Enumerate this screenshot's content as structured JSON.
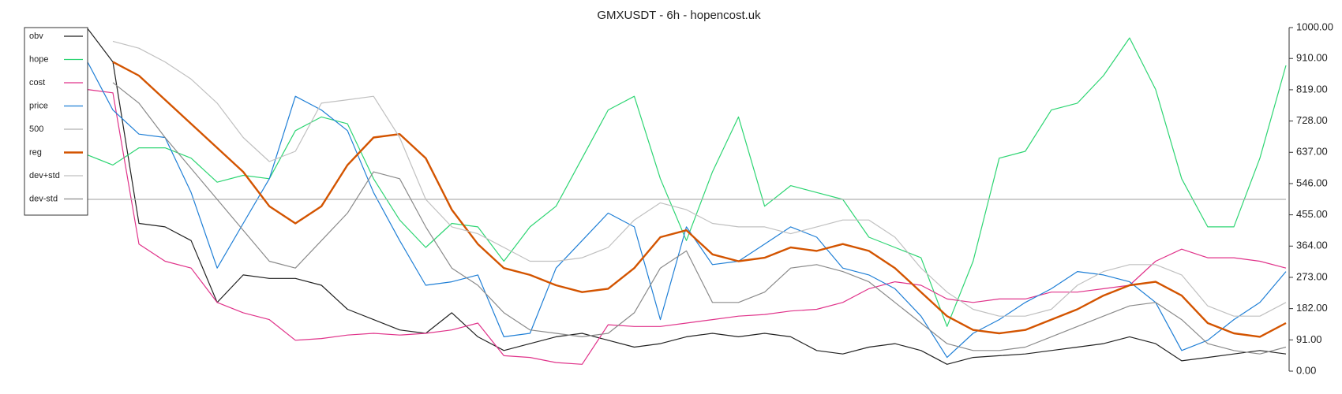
{
  "chart_data": {
    "type": "line",
    "title": "GMXUSDT - 6h - hopencost.uk",
    "ylim": [
      0,
      1000
    ],
    "yticks": [
      {
        "value": 0,
        "label": "0.00"
      },
      {
        "value": 91,
        "label": "91.00"
      },
      {
        "value": 182,
        "label": "182.00"
      },
      {
        "value": 273,
        "label": "273.00"
      },
      {
        "value": 364,
        "label": "364.00"
      },
      {
        "value": 455,
        "label": "455.00"
      },
      {
        "value": 546,
        "label": "546.00"
      },
      {
        "value": 637,
        "label": "637.00"
      },
      {
        "value": 728,
        "label": "728.00"
      },
      {
        "value": 819,
        "label": "819.00"
      },
      {
        "value": 910,
        "label": "910.00"
      },
      {
        "value": 1000,
        "label": "1000.00"
      }
    ],
    "legend": "upper left",
    "series": [
      {
        "name": "obv",
        "color": "#222222",
        "values": [
          1000,
          900,
          430,
          420,
          380,
          200,
          280,
          270,
          270,
          250,
          180,
          150,
          120,
          110,
          170,
          100,
          60,
          80,
          100,
          110,
          90,
          70,
          80,
          100,
          110,
          100,
          110,
          100,
          60,
          50,
          70,
          80,
          60,
          20,
          40,
          45,
          50,
          60,
          70,
          80,
          100,
          80,
          30,
          40,
          50,
          60,
          50
        ]
      },
      {
        "name": "hope",
        "color": "#2ed573",
        "values": [
          630,
          600,
          650,
          650,
          620,
          550,
          570,
          560,
          700,
          740,
          720,
          560,
          440,
          360,
          430,
          420,
          320,
          420,
          480,
          620,
          760,
          800,
          560,
          380,
          580,
          740,
          480,
          540,
          520,
          500,
          390,
          360,
          330,
          130,
          320,
          620,
          640,
          760,
          780,
          860,
          970,
          820,
          560,
          420,
          420,
          620,
          890
        ]
      },
      {
        "name": "cost",
        "color": "#e0338a",
        "values": [
          820,
          810,
          370,
          320,
          300,
          200,
          170,
          150,
          90,
          95,
          105,
          110,
          105,
          110,
          120,
          140,
          45,
          40,
          25,
          20,
          135,
          130,
          130,
          140,
          150,
          160,
          165,
          175,
          180,
          200,
          240,
          260,
          250,
          210,
          200,
          210,
          210,
          230,
          230,
          240,
          250,
          320,
          355,
          330,
          330,
          320,
          300
        ]
      },
      {
        "name": "price",
        "color": "#1f7fd6",
        "values": [
          904,
          760,
          690,
          680,
          520,
          300,
          430,
          560,
          800,
          760,
          700,
          520,
          380,
          250,
          260,
          280,
          100,
          110,
          300,
          380,
          460,
          420,
          150,
          420,
          310,
          320,
          370,
          420,
          390,
          300,
          280,
          240,
          160,
          40,
          110,
          150,
          200,
          240,
          290,
          280,
          260,
          200,
          60,
          90,
          150,
          200,
          290
        ]
      },
      {
        "name": "500",
        "color": "#b0b0b0",
        "values": [
          500,
          500,
          500,
          500,
          500,
          500,
          500,
          500,
          500,
          500,
          500,
          500,
          500,
          500,
          500,
          500,
          500,
          500,
          500,
          500,
          500,
          500,
          500,
          500,
          500,
          500,
          500,
          500,
          500,
          500,
          500,
          500,
          500,
          500,
          500,
          500,
          500,
          500,
          500,
          500,
          500,
          500,
          500,
          500,
          500,
          500,
          500
        ]
      },
      {
        "name": "reg",
        "color": "#d35400",
        "values": [
          null,
          900,
          860,
          790,
          720,
          650,
          580,
          480,
          430,
          480,
          600,
          680,
          690,
          620,
          470,
          370,
          300,
          280,
          250,
          230,
          240,
          300,
          390,
          410,
          340,
          320,
          330,
          360,
          350,
          370,
          350,
          300,
          230,
          160,
          120,
          110,
          120,
          150,
          180,
          220,
          250,
          260,
          220,
          140,
          110,
          100,
          140
        ]
      },
      {
        "name": "dev+std",
        "color": "#c0c0c0",
        "values": [
          null,
          960,
          940,
          900,
          850,
          780,
          680,
          610,
          640,
          780,
          790,
          800,
          680,
          500,
          420,
          400,
          360,
          320,
          320,
          330,
          360,
          440,
          490,
          470,
          430,
          420,
          420,
          400,
          420,
          440,
          440,
          390,
          300,
          230,
          180,
          160,
          160,
          180,
          250,
          290,
          310,
          310,
          280,
          190,
          160,
          160,
          200
        ]
      },
      {
        "name": "dev-std",
        "color": "#8a8a8a",
        "values": [
          null,
          840,
          780,
          680,
          590,
          500,
          410,
          320,
          300,
          380,
          460,
          580,
          560,
          420,
          300,
          250,
          170,
          120,
          110,
          100,
          110,
          170,
          300,
          350,
          200,
          200,
          230,
          300,
          310,
          290,
          260,
          200,
          140,
          80,
          60,
          60,
          70,
          100,
          130,
          160,
          190,
          200,
          150,
          80,
          60,
          50,
          70
        ]
      }
    ]
  }
}
